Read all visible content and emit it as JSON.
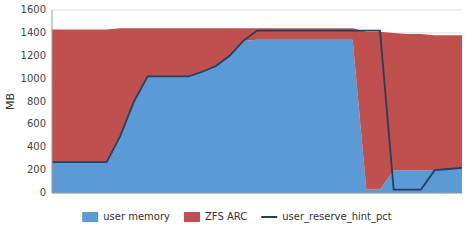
{
  "chart_data": {
    "type": "area",
    "stacked": true,
    "ylabel": "MB",
    "x": [
      0,
      1,
      2,
      3,
      4,
      5,
      6,
      7,
      8,
      9,
      10,
      11,
      12,
      13,
      14,
      15,
      16,
      17,
      18,
      19,
      20,
      21,
      22,
      23,
      24,
      25,
      26,
      27,
      28,
      29,
      30
    ],
    "series": [
      {
        "name": "user memory",
        "color": "#5b9bd5",
        "type": "area",
        "values": [
          270,
          270,
          270,
          270,
          270,
          500,
          800,
          1020,
          1020,
          1020,
          1020,
          1060,
          1110,
          1200,
          1330,
          1340,
          1340,
          1340,
          1340,
          1340,
          1340,
          1340,
          1340,
          30,
          30,
          200,
          200,
          200,
          200,
          210,
          220
        ]
      },
      {
        "name": "ZFS ARC",
        "color": "#c0504d",
        "type": "area",
        "values": [
          1160,
          1160,
          1160,
          1160,
          1160,
          940,
          640,
          420,
          420,
          420,
          420,
          380,
          330,
          240,
          110,
          100,
          100,
          100,
          100,
          100,
          100,
          100,
          100,
          1380,
          1380,
          1200,
          1190,
          1190,
          1180,
          1170,
          1160
        ]
      },
      {
        "name": "user_reserve_hint_pct",
        "color": "#243f60",
        "type": "line",
        "values": [
          270,
          270,
          270,
          270,
          270,
          500,
          800,
          1020,
          1020,
          1020,
          1020,
          1060,
          1110,
          1200,
          1330,
          1420,
          1420,
          1420,
          1420,
          1420,
          1420,
          1420,
          1420,
          1420,
          1420,
          30,
          30,
          30,
          200,
          210,
          220
        ]
      }
    ],
    "xlim": [
      0,
      30
    ],
    "ylim": [
      0,
      1600
    ],
    "yticks": [
      0,
      200,
      400,
      600,
      800,
      1000,
      1200,
      1400,
      1600
    ],
    "grid": true,
    "legend": "bottom",
    "tick_labels": "y"
  }
}
